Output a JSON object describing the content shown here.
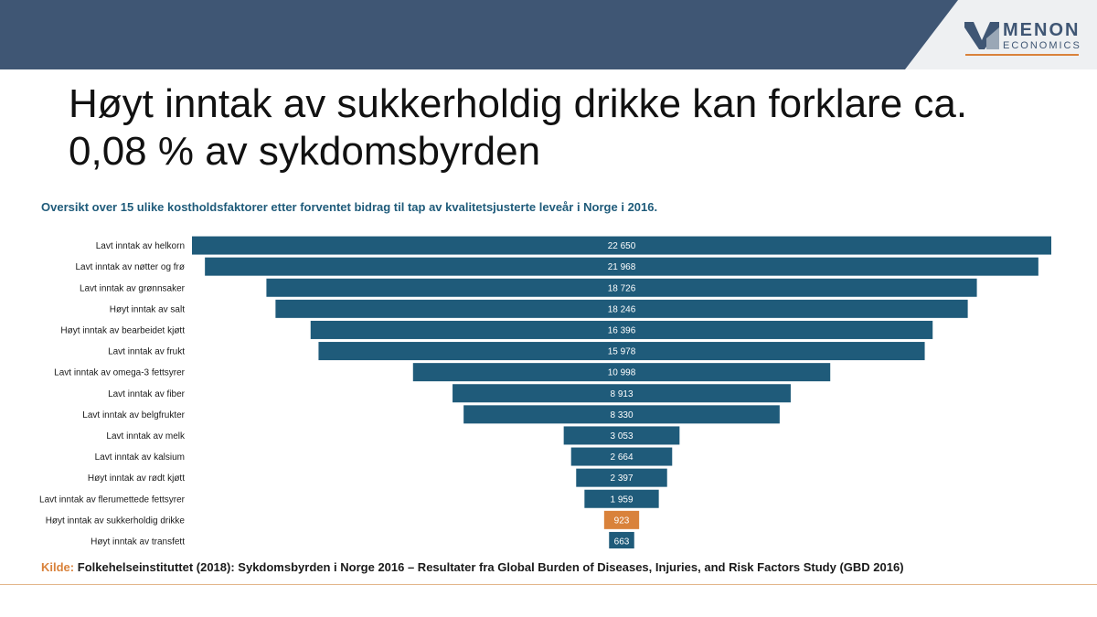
{
  "slide": {
    "title": "Høyt inntak av sukkerholdig drikke kan forklare ca. 0,08 % av sykdomsbyrden"
  },
  "logo": {
    "word": "MENON",
    "sub": "ECONOMICS"
  },
  "chart_data": {
    "type": "bar",
    "orientation": "horizontal",
    "layout": "centered-funnel",
    "title": "Oversikt over 15 ulike kostholdsfaktorer etter forventet bidrag til tap av kvalitetsjusterte leveår i Norge i 2016.",
    "xlabel": "",
    "ylabel": "",
    "xlim": [
      0,
      22650
    ],
    "grid": false,
    "legend": "none",
    "categories": [
      "Lavt inntak av helkorn",
      "Lavt inntak av nøtter og frø",
      "Lavt inntak av grønnsaker",
      "Høyt inntak av salt",
      "Høyt inntak av bearbeidet kjøtt",
      "Lavt inntak av frukt",
      "Lavt inntak av omega-3 fettsyrer",
      "Lavt inntak av fiber",
      "Lavt inntak av belgfrukter",
      "Lavt inntak av melk",
      "Lavt inntak av kalsium",
      "Høyt inntak av rødt kjøtt",
      "Lavt inntak av flerumettede fettsyrer",
      "Høyt inntak av sukkerholdig drikke",
      "Høyt inntak av transfett"
    ],
    "values": [
      22650,
      21968,
      18726,
      18246,
      16396,
      15978,
      10998,
      8913,
      8330,
      3053,
      2664,
      2397,
      1959,
      923,
      663
    ],
    "value_labels": [
      "22 650",
      "21 968",
      "18 726",
      "18 246",
      "16 396",
      "15 978",
      "10 998",
      "8 913",
      "8 330",
      "3 053",
      "2 664",
      "2 397",
      "1 959",
      "923",
      "663"
    ],
    "bar_color": "#1f5b7a",
    "highlight_index": 13,
    "highlight_color": "#d9823b"
  },
  "source": {
    "label": "Kilde:",
    "text": "Folkehelseinstituttet (2018): Sykdomsbyrden i Norge 2016 – Resultater fra Global Burden of Diseases, Injuries, and Risk Factors Study (GBD 2016)"
  }
}
